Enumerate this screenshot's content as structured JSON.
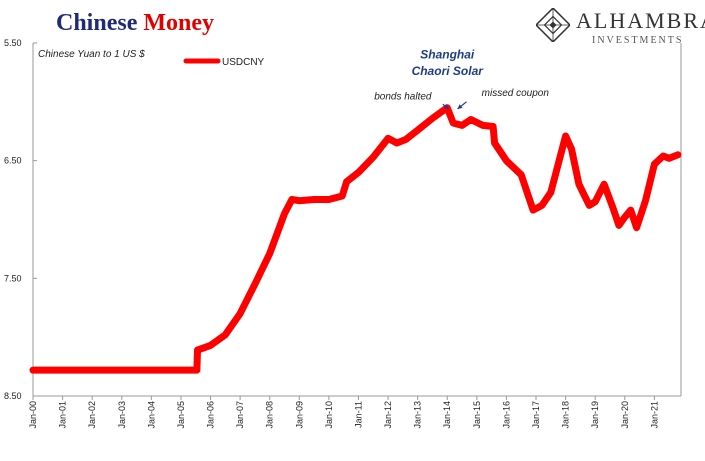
{
  "header": {
    "title_main": "Chinese",
    "title_accent": "Money",
    "brand_name": "ALHAMBRA",
    "brand_sub": "INVESTMENTS",
    "brand_logo_icon": "diamond-lattice-icon"
  },
  "colors": {
    "series": "#ff0000",
    "title": "#1f2a78",
    "title_accent": "#e00000",
    "annotation": "#1f3c88",
    "grid": "#cccccc"
  },
  "chart_data": {
    "type": "line",
    "title": "",
    "ylabel": "Chinese Yuan to 1 US $",
    "xlabel": "",
    "y_inverted": true,
    "ylim": [
      5.5,
      8.5
    ],
    "y_ticks": [
      "5.50",
      "6.50",
      "7.50",
      "8.50"
    ],
    "y_tick_values": [
      5.5,
      6.5,
      7.5,
      8.5
    ],
    "x_ticks": [
      "Jan-00",
      "Jan-01",
      "Jan-02",
      "Jan-03",
      "Jan-04",
      "Jan-05",
      "Jan-06",
      "Jan-07",
      "Jan-08",
      "Jan-09",
      "Jan-10",
      "Jan-11",
      "Jan-12",
      "Jan-13",
      "Jan-14",
      "Jan-15",
      "Jan-16",
      "Jan-17",
      "Jan-18",
      "Jan-19",
      "Jan-20",
      "Jan-21"
    ],
    "x_tick_values": [
      2000,
      2001,
      2002,
      2003,
      2004,
      2005,
      2006,
      2007,
      2008,
      2009,
      2010,
      2011,
      2012,
      2013,
      2014,
      2015,
      2016,
      2017,
      2018,
      2019,
      2020,
      2021
    ],
    "xlim": [
      2000,
      2021.9
    ],
    "grid": false,
    "legend_position": "top-left",
    "series": [
      {
        "name": "USDCNY",
        "x": [
          2000,
          2005.54,
          2005.56,
          2006.0,
          2006.5,
          2007.0,
          2007.5,
          2008.0,
          2008.5,
          2008.75,
          2009.0,
          2009.5,
          2010.0,
          2010.45,
          2010.6,
          2011.0,
          2011.5,
          2012.0,
          2012.3,
          2012.6,
          2013.0,
          2013.5,
          2014.0,
          2014.2,
          2014.5,
          2014.8,
          2015.2,
          2015.55,
          2015.6,
          2016.0,
          2016.5,
          2016.9,
          2017.2,
          2017.5,
          2018.0,
          2018.2,
          2018.45,
          2018.8,
          2019.0,
          2019.3,
          2019.6,
          2019.8,
          2020.0,
          2020.2,
          2020.4,
          2020.7,
          2021.0,
          2021.3,
          2021.5,
          2021.8
        ],
        "values": [
          8.28,
          8.28,
          8.11,
          8.07,
          7.98,
          7.8,
          7.55,
          7.29,
          6.95,
          6.83,
          6.84,
          6.83,
          6.83,
          6.8,
          6.68,
          6.6,
          6.47,
          6.31,
          6.35,
          6.32,
          6.24,
          6.14,
          6.05,
          6.18,
          6.2,
          6.15,
          6.2,
          6.21,
          6.35,
          6.5,
          6.62,
          6.92,
          6.88,
          6.77,
          6.29,
          6.4,
          6.7,
          6.88,
          6.85,
          6.7,
          6.9,
          7.05,
          6.98,
          6.92,
          7.07,
          6.84,
          6.53,
          6.46,
          6.48,
          6.45
        ]
      }
    ],
    "annotations": [
      {
        "text": "Shanghai",
        "x": 2014.0,
        "y": 5.63
      },
      {
        "text": "Chaori Solar",
        "x": 2014.0,
        "y": 5.77
      },
      {
        "text": "bonds halted",
        "x": 2012.5,
        "y": 5.98
      },
      {
        "text": "missed coupon",
        "x": 2016.3,
        "y": 5.95
      }
    ],
    "arrows": [
      {
        "from_x": 2013.85,
        "from_y": 6.02,
        "to_x": 2014.05,
        "to_y": 6.06
      },
      {
        "from_x": 2014.65,
        "from_y": 6.0,
        "to_x": 2014.35,
        "to_y": 6.06
      }
    ]
  }
}
